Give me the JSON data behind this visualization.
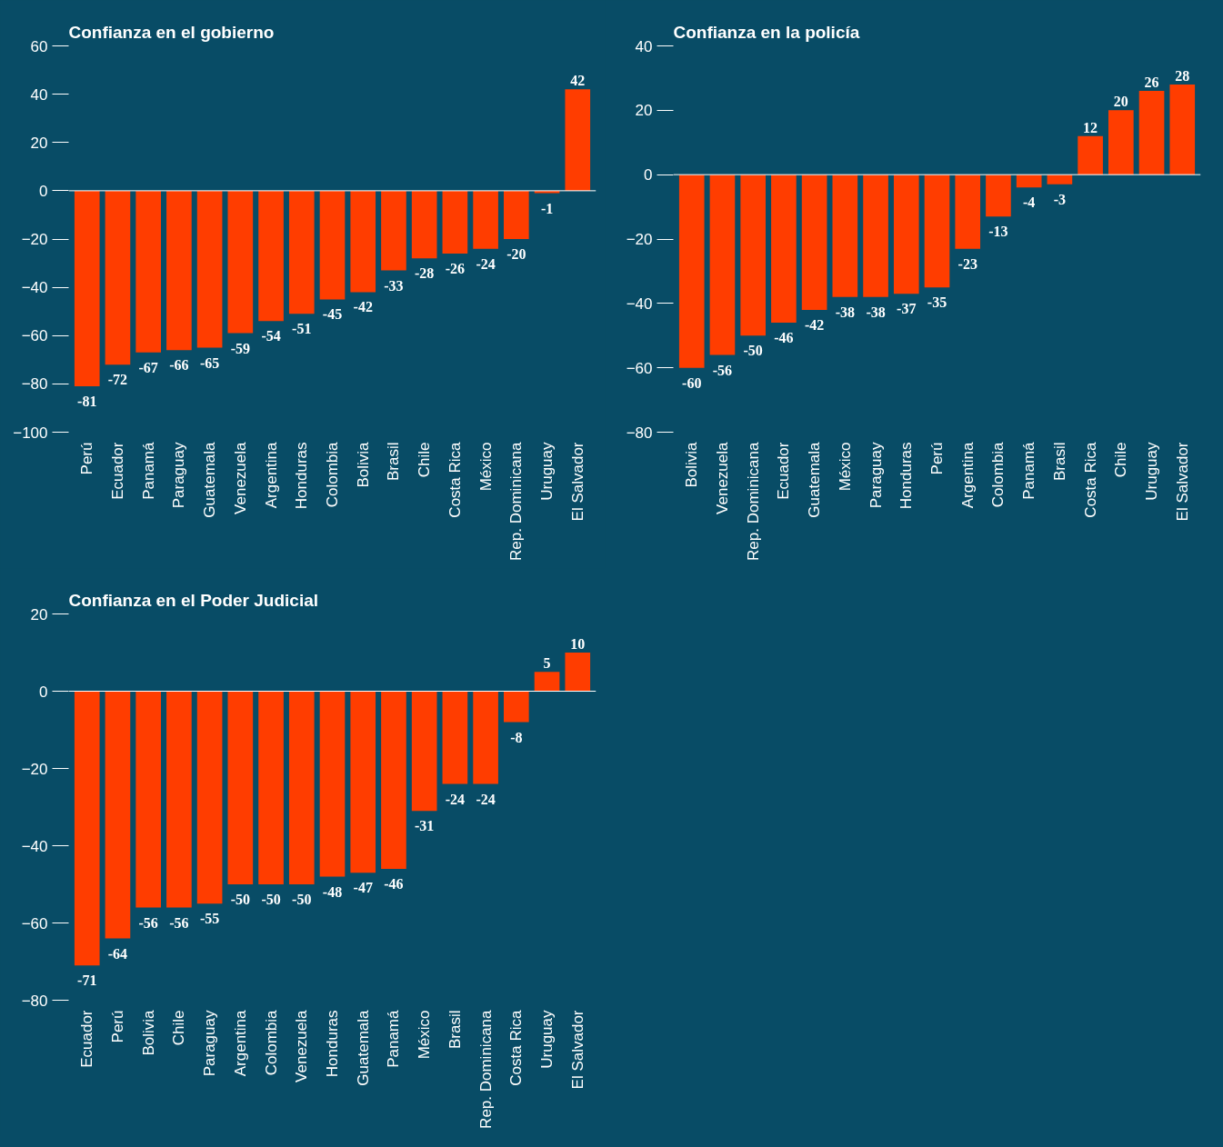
{
  "chart_data": [
    {
      "type": "bar",
      "title": "Confianza en el gobierno",
      "color": "#ff3d00",
      "data_labels": true,
      "ylim": [
        -100,
        60
      ],
      "yticks": [
        -100,
        -80,
        -60,
        -40,
        -20,
        0,
        20,
        40,
        60
      ],
      "categories": [
        "Perú",
        "Ecuador",
        "Panamá",
        "Paraguay",
        "Guatemala",
        "Venezuela",
        "Argentina",
        "Honduras",
        "Colombia",
        "Bolivia",
        "Brasil",
        "Chile",
        "Costa Rica",
        "México",
        "Rep. Dominicana",
        "Uruguay",
        "El Salvador"
      ],
      "values": [
        -81,
        -72,
        -67,
        -66,
        -65,
        -59,
        -54,
        -51,
        -45,
        -42,
        -33,
        -28,
        -26,
        -24,
        -20,
        -1,
        42
      ]
    },
    {
      "type": "bar",
      "title": "Confianza en la policía",
      "color": "#ff3d00",
      "data_labels": true,
      "ylim": [
        -80,
        40
      ],
      "yticks": [
        -80,
        -60,
        -40,
        -20,
        0,
        20,
        40
      ],
      "categories": [
        "Bolivia",
        "Venezuela",
        "Rep. Dominicana",
        "Ecuador",
        "Guatemala",
        "México",
        "Paraguay",
        "Honduras",
        "Perú",
        "Argentina",
        "Colombia",
        "Panamá",
        "Brasil",
        "Costa Rica",
        "Chile",
        "Uruguay",
        "El Salvador"
      ],
      "values": [
        -60,
        -56,
        -50,
        -46,
        -42,
        -38,
        -38,
        -37,
        -35,
        -23,
        -13,
        -4,
        -3,
        12,
        20,
        26,
        28
      ]
    },
    {
      "type": "bar",
      "title": "Confianza en el Poder Judicial",
      "color": "#ff3d00",
      "data_labels": true,
      "ylim": [
        -80,
        20
      ],
      "yticks": [
        -80,
        -60,
        -40,
        -20,
        0,
        20
      ],
      "categories": [
        "Ecuador",
        "Perú",
        "Bolivia",
        "Chile",
        "Paraguay",
        "Argentina",
        "Colombia",
        "Venezuela",
        "Honduras",
        "Guatemala",
        "Panamá",
        "México",
        "Brasil",
        "Rep. Dominicana",
        "Costa Rica",
        "Uruguay",
        "El Salvador"
      ],
      "values": [
        -71,
        -64,
        -56,
        -56,
        -55,
        -50,
        -50,
        -50,
        -48,
        -47,
        -46,
        -31,
        -24,
        -24,
        -8,
        5,
        10
      ]
    }
  ]
}
